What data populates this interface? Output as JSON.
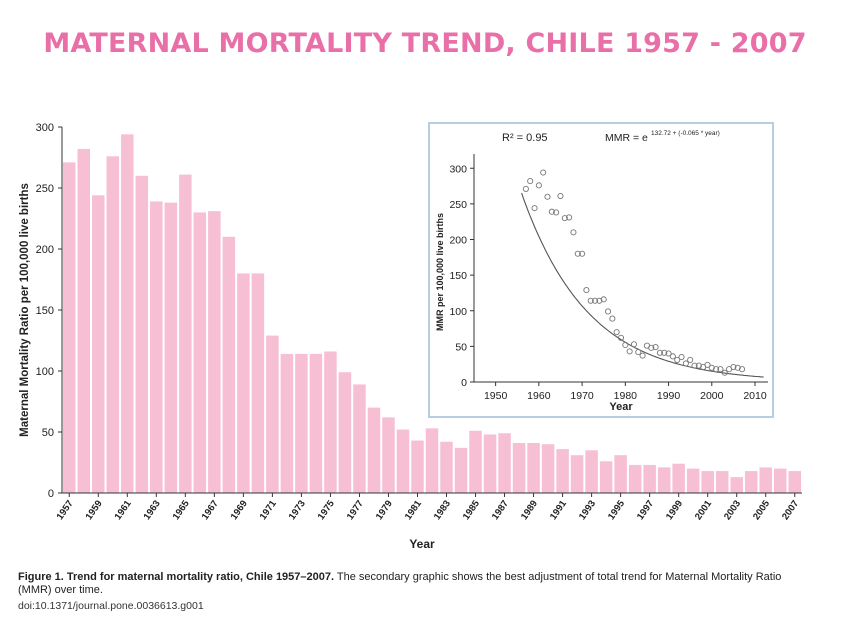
{
  "title": "MATERNAL MORTALITY TREND, CHILE 1957 - 2007",
  "title_color": "#e96fa8",
  "chart_data": [
    {
      "type": "bar",
      "xlabel": "Year",
      "ylabel": "Maternal Mortality Ratio per 100,000 live births",
      "ylim": [
        0,
        300
      ],
      "yticks": [
        0,
        50,
        100,
        150,
        200,
        250,
        300
      ],
      "bar_color": "#f7bfd4",
      "categories": [
        1957,
        1958,
        1959,
        1960,
        1961,
        1962,
        1963,
        1964,
        1965,
        1966,
        1967,
        1968,
        1969,
        1970,
        1971,
        1972,
        1973,
        1974,
        1975,
        1976,
        1977,
        1978,
        1979,
        1980,
        1981,
        1982,
        1983,
        1984,
        1985,
        1986,
        1987,
        1988,
        1989,
        1990,
        1991,
        1992,
        1993,
        1994,
        1995,
        1996,
        1997,
        1998,
        1999,
        2000,
        2001,
        2002,
        2003,
        2004,
        2005,
        2006,
        2007
      ],
      "xtick_labels": [
        "1957",
        "1959",
        "1961",
        "1963",
        "1965",
        "1967",
        "1969",
        "1971",
        "1973",
        "1975",
        "1977",
        "1979",
        "1981",
        "1983",
        "1985",
        "1987",
        "1989",
        "1991",
        "1993",
        "1995",
        "1997",
        "1999",
        "2001",
        "2003",
        "2005",
        "2007"
      ],
      "values": [
        271,
        282,
        244,
        276,
        294,
        260,
        239,
        238,
        261,
        230,
        231,
        210,
        180,
        180,
        129,
        114,
        114,
        114,
        116,
        99,
        89,
        70,
        62,
        52,
        43,
        53,
        42,
        37,
        51,
        48,
        49,
        41,
        41,
        40,
        36,
        31,
        35,
        26,
        31,
        23,
        23,
        21,
        24,
        20,
        18,
        18,
        13,
        18,
        21,
        20,
        18
      ]
    },
    {
      "type": "scatter",
      "xlabel": "Year",
      "ylabel": "MMR per 100,000 live births",
      "xlim": [
        1945,
        2013
      ],
      "ylim": [
        0,
        320
      ],
      "xticks": [
        1950,
        1960,
        1970,
        1980,
        1990,
        2000,
        2010
      ],
      "yticks": [
        0,
        50,
        100,
        150,
        200,
        250,
        300
      ],
      "annotation_r2": "R² = 0.95",
      "annotation_formula_base": "MMR = e",
      "annotation_formula_exp": "132.72 + (-0.065 * year)",
      "fit": {
        "intercept": 132.72,
        "slope": -0.065
      },
      "x": [
        1957,
        1958,
        1959,
        1960,
        1961,
        1962,
        1963,
        1964,
        1965,
        1966,
        1967,
        1968,
        1969,
        1970,
        1971,
        1972,
        1973,
        1974,
        1975,
        1976,
        1977,
        1978,
        1979,
        1980,
        1981,
        1982,
        1983,
        1984,
        1985,
        1986,
        1987,
        1988,
        1989,
        1990,
        1991,
        1992,
        1993,
        1994,
        1995,
        1996,
        1997,
        1998,
        1999,
        2000,
        2001,
        2002,
        2003,
        2004,
        2005,
        2006,
        2007
      ],
      "y": [
        271,
        282,
        244,
        276,
        294,
        260,
        239,
        238,
        261,
        230,
        231,
        210,
        180,
        180,
        129,
        114,
        114,
        114,
        116,
        99,
        89,
        70,
        62,
        52,
        43,
        53,
        42,
        37,
        51,
        48,
        49,
        41,
        41,
        40,
        36,
        31,
        35,
        26,
        31,
        23,
        23,
        21,
        24,
        20,
        18,
        18,
        13,
        18,
        21,
        20,
        18
      ]
    }
  ],
  "caption": {
    "bold": "Figure 1. Trend for maternal mortality ratio, Chile 1957–2007.",
    "text": " The secondary graphic shows the best adjustment of total trend for Maternal Mortality Ratio (MMR) over time.",
    "doi": "doi:10.1371/journal.pone.0036613.g001"
  }
}
